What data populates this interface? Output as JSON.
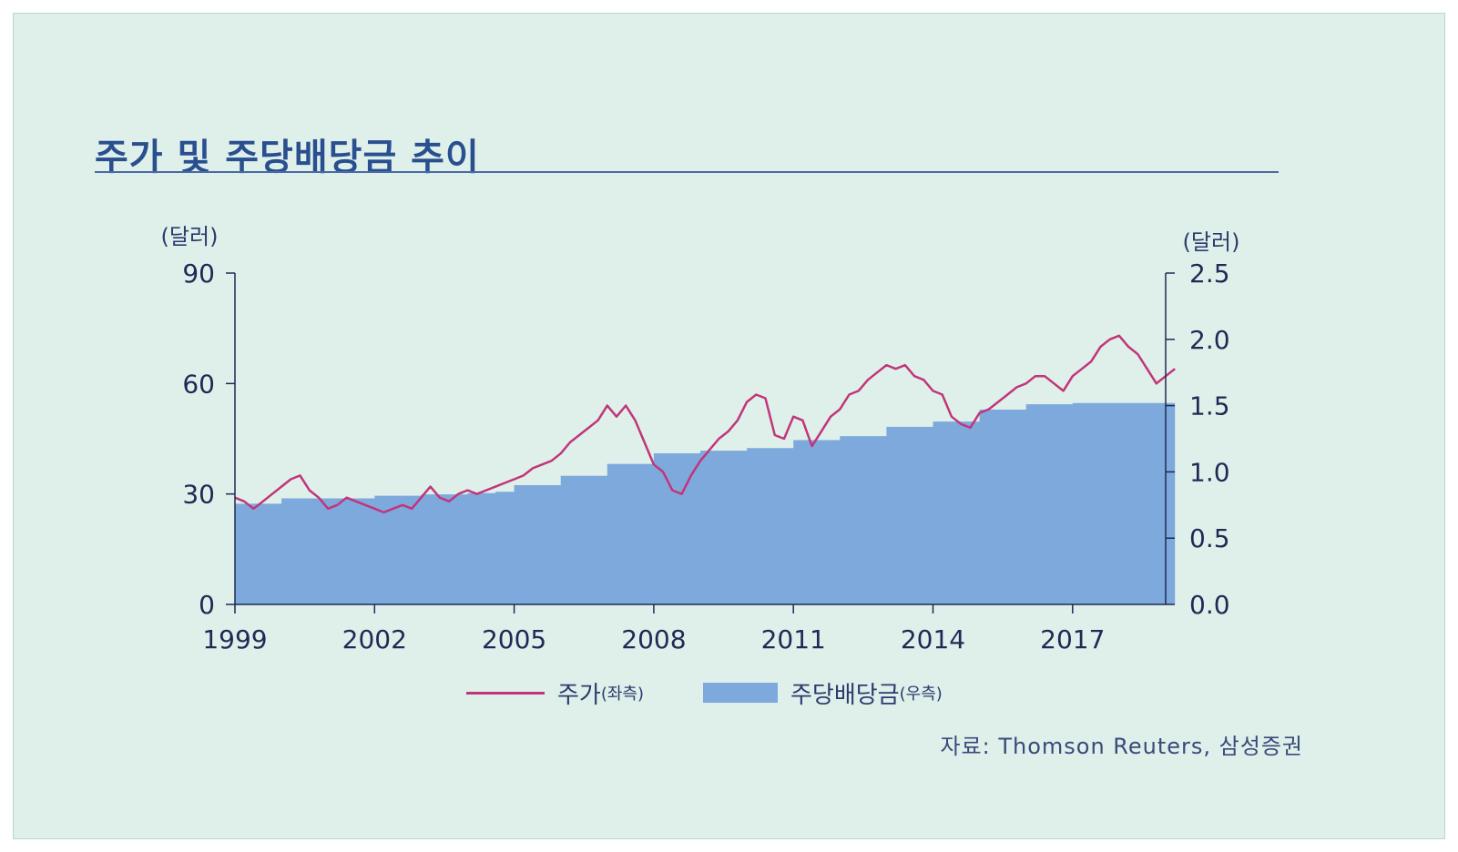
{
  "title": "주가 및 주당배당금 추이",
  "colors": {
    "background": "#dff0ea",
    "price_line": "#c2357a",
    "dividend_fill": "#7ea9dd",
    "title": "#2a4f8f",
    "axis": "#1e2a55"
  },
  "legend": {
    "price_label": "주가",
    "price_side": "(좌측)",
    "dividend_label": "주당배당금",
    "dividend_side": "(우측)"
  },
  "source": "자료: Thomson Reuters, 삼성증권",
  "chart_data": {
    "type": "line+area",
    "title": "주가 및 주당배당금 추이",
    "y_left_unit": "(달러)",
    "y_right_unit": "(달러)",
    "x_ticks": [
      "1999",
      "2002",
      "2005",
      "2008",
      "2011",
      "2014",
      "2017"
    ],
    "x_range": [
      1999,
      2019
    ],
    "y_left_ticks": [
      "0",
      "30",
      "60",
      "90"
    ],
    "y_left_range": [
      0,
      90
    ],
    "y_right_ticks": [
      "0.0",
      "0.5",
      "1.0",
      "1.5",
      "2.0",
      "2.5"
    ],
    "y_right_range": [
      0,
      2.5
    ],
    "series": [
      {
        "name": "주가(좌측)",
        "axis": "left",
        "kind": "line",
        "x": [
          1999.0,
          1999.2,
          1999.4,
          1999.6,
          1999.8,
          2000.0,
          2000.2,
          2000.4,
          2000.6,
          2000.8,
          2001.0,
          2001.2,
          2001.4,
          2001.6,
          2001.8,
          2002.0,
          2002.2,
          2002.4,
          2002.6,
          2002.8,
          2003.0,
          2003.2,
          2003.4,
          2003.6,
          2003.8,
          2004.0,
          2004.2,
          2004.4,
          2004.6,
          2004.8,
          2005.0,
          2005.2,
          2005.4,
          2005.6,
          2005.8,
          2006.0,
          2006.2,
          2006.4,
          2006.6,
          2006.8,
          2007.0,
          2007.2,
          2007.4,
          2007.6,
          2007.8,
          2008.0,
          2008.2,
          2008.4,
          2008.6,
          2008.8,
          2009.0,
          2009.2,
          2009.4,
          2009.6,
          2009.8,
          2010.0,
          2010.2,
          2010.4,
          2010.6,
          2010.8,
          2011.0,
          2011.2,
          2011.4,
          2011.6,
          2011.8,
          2012.0,
          2012.2,
          2012.4,
          2012.6,
          2012.8,
          2013.0,
          2013.2,
          2013.4,
          2013.6,
          2013.8,
          2014.0,
          2014.2,
          2014.4,
          2014.6,
          2014.8,
          2015.0,
          2015.2,
          2015.4,
          2015.6,
          2015.8,
          2016.0,
          2016.2,
          2016.4,
          2016.6,
          2016.8,
          2017.0,
          2017.2,
          2017.4,
          2017.6,
          2017.8,
          2018.0,
          2018.2,
          2018.4,
          2018.6,
          2018.8,
          2019.0,
          2019.2
        ],
        "values": [
          29,
          28,
          26,
          28,
          30,
          32,
          34,
          35,
          31,
          29,
          26,
          27,
          29,
          28,
          27,
          26,
          25,
          26,
          27,
          26,
          29,
          32,
          29,
          28,
          30,
          31,
          30,
          31,
          32,
          33,
          34,
          35,
          37,
          38,
          39,
          41,
          44,
          46,
          48,
          50,
          54,
          51,
          54,
          50,
          44,
          38,
          36,
          31,
          30,
          35,
          39,
          42,
          45,
          47,
          50,
          55,
          57,
          56,
          46,
          45,
          51,
          50,
          43,
          47,
          51,
          53,
          57,
          58,
          61,
          63,
          65,
          64,
          65,
          62,
          61,
          58,
          57,
          51,
          49,
          48,
          52,
          53,
          55,
          57,
          59,
          60,
          62,
          62,
          60,
          58,
          62,
          64,
          66,
          70,
          72,
          73,
          70,
          68,
          64,
          60,
          62,
          64
        ]
      },
      {
        "name": "주당배당금(우측)",
        "axis": "right",
        "kind": "step-area",
        "x": [
          1999.0,
          1999.7,
          2000.0,
          2001.0,
          2002.0,
          2003.0,
          2004.0,
          2004.6,
          2005.0,
          2006.0,
          2007.0,
          2008.0,
          2009.0,
          2010.0,
          2011.0,
          2012.0,
          2013.0,
          2014.0,
          2015.0,
          2016.0,
          2017.0,
          2019.2
        ],
        "values": [
          0.76,
          0.76,
          0.8,
          0.8,
          0.82,
          0.83,
          0.84,
          0.85,
          0.9,
          0.97,
          1.06,
          1.14,
          1.16,
          1.18,
          1.24,
          1.27,
          1.34,
          1.38,
          1.47,
          1.51,
          1.52,
          1.52
        ]
      }
    ]
  }
}
